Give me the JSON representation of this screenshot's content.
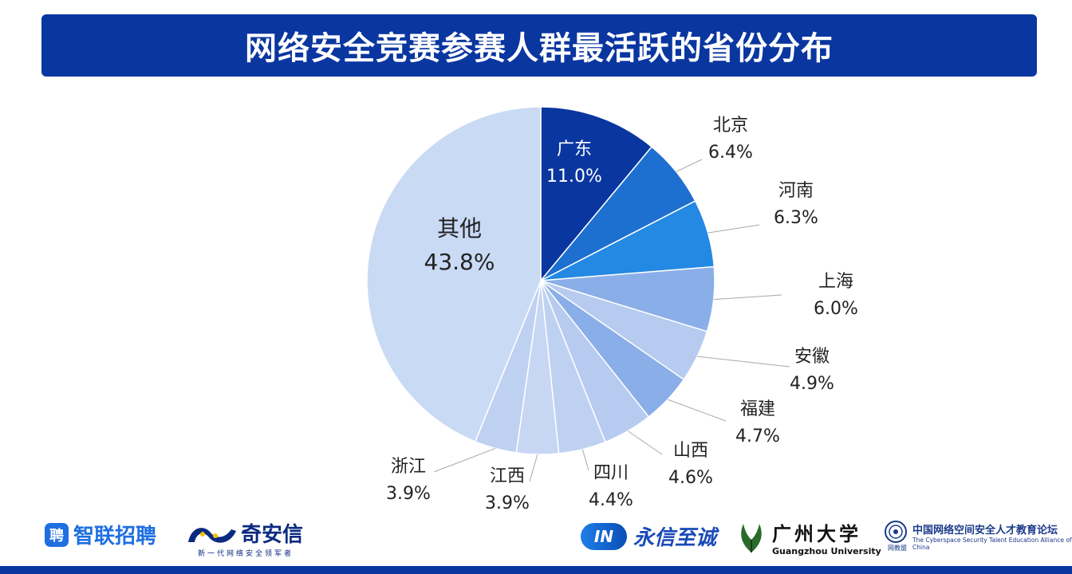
{
  "header": {
    "title": "网络安全竞赛参赛人群最活跃的省份分布"
  },
  "chart_data": {
    "type": "pie",
    "title": "网络安全竞赛参赛人群最活跃的省份分布",
    "start": "12 o'clock, clockwise",
    "slices": [
      {
        "label": "广东",
        "value": 11.0,
        "text": "11.0%",
        "color": "#0a36a0"
      },
      {
        "label": "北京",
        "value": 6.4,
        "text": "6.4%",
        "color": "#1d6fd0"
      },
      {
        "label": "河南",
        "value": 6.3,
        "text": "6.3%",
        "color": "#2389e3"
      },
      {
        "label": "上海",
        "value": 6.0,
        "text": "6.0%",
        "color": "#8aaee8"
      },
      {
        "label": "安徽",
        "value": 4.9,
        "text": "4.9%",
        "color": "#b7cbf0"
      },
      {
        "label": "福建",
        "value": 4.7,
        "text": "4.7%",
        "color": "#8aaee8"
      },
      {
        "label": "山西",
        "value": 4.6,
        "text": "4.6%",
        "color": "#b7cbf0"
      },
      {
        "label": "四川",
        "value": 4.4,
        "text": "4.4%",
        "color": "#bfd1f1"
      },
      {
        "label": "江西",
        "value": 3.9,
        "text": "3.9%",
        "color": "#c6d6f3"
      },
      {
        "label": "浙江",
        "value": 3.9,
        "text": "3.9%",
        "color": "#bfd1f1"
      },
      {
        "label": "其他",
        "value": 43.8,
        "text": "43.8%",
        "color": "#c9daf5"
      }
    ]
  },
  "logos": {
    "zhaopin_badge": "聘",
    "zhaopin": "智联招聘",
    "qax": "奇安信",
    "qax_sub": "新一代网络安全领军者",
    "yongxin_badge": "IN",
    "yongxin": "永信至诚",
    "gzhu_cn": "广州大学",
    "gzhu_en": "Guangzhou University",
    "alliance_cn": "中国网络空间安全人才教育论坛",
    "alliance_en": "The Cyberspace Security Talent Education Alliance of China",
    "alliance_sub": "网教盟"
  },
  "colors": {
    "brand": "#0a36a0"
  }
}
